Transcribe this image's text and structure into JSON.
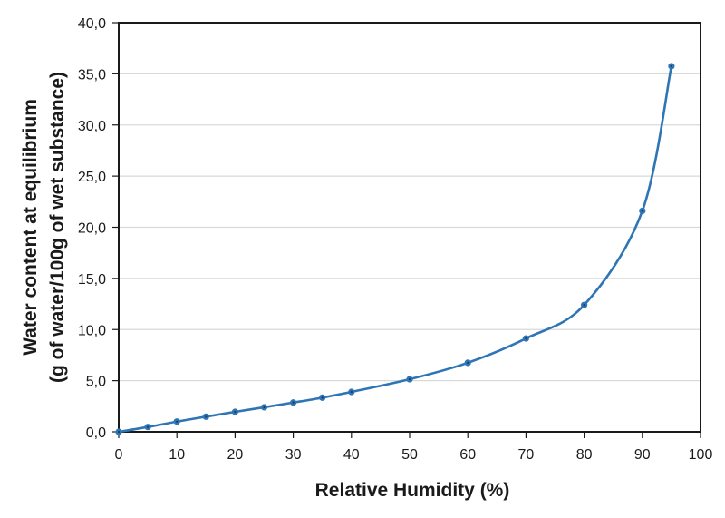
{
  "chart_data": {
    "type": "line",
    "title": "",
    "xlabel": "Relative Humidity (%)",
    "ylabel_line1": "Water content at equilibrium",
    "ylabel_line2": "(g of water/100g of wet substance)",
    "xlim": [
      0,
      100
    ],
    "ylim": [
      0,
      40
    ],
    "x_ticks": [
      0,
      10,
      20,
      30,
      40,
      50,
      60,
      70,
      80,
      90,
      100
    ],
    "x_tick_labels": [
      "0",
      "10",
      "20",
      "30",
      "40",
      "50",
      "60",
      "70",
      "80",
      "90",
      "100"
    ],
    "y_ticks": [
      0,
      5,
      10,
      15,
      20,
      25,
      30,
      35,
      40
    ],
    "y_tick_labels": [
      "0,0",
      "5,0",
      "10,0",
      "15,0",
      "20,0",
      "25,0",
      "30,0",
      "35,0",
      "40,0"
    ],
    "grid": {
      "horizontal": true,
      "vertical": false
    },
    "legend": null,
    "series": [
      {
        "name": "Water content",
        "color": "#2E75B6",
        "marker_color": "#2E75B6",
        "marker_center_color": "#1F3864",
        "smooth": true,
        "x": [
          0,
          5,
          10,
          15,
          20,
          25,
          30,
          35,
          40,
          50,
          60,
          70,
          80,
          90,
          95
        ],
        "values": [
          0.0,
          0.47,
          1.0,
          1.48,
          1.95,
          2.4,
          2.86,
          3.34,
          3.9,
          5.14,
          6.75,
          9.13,
          12.4,
          21.6,
          35.75
        ]
      }
    ]
  },
  "colors": {
    "axis": "#1a1a1a",
    "gridline": "#d9d9d9",
    "background": "#ffffff"
  }
}
